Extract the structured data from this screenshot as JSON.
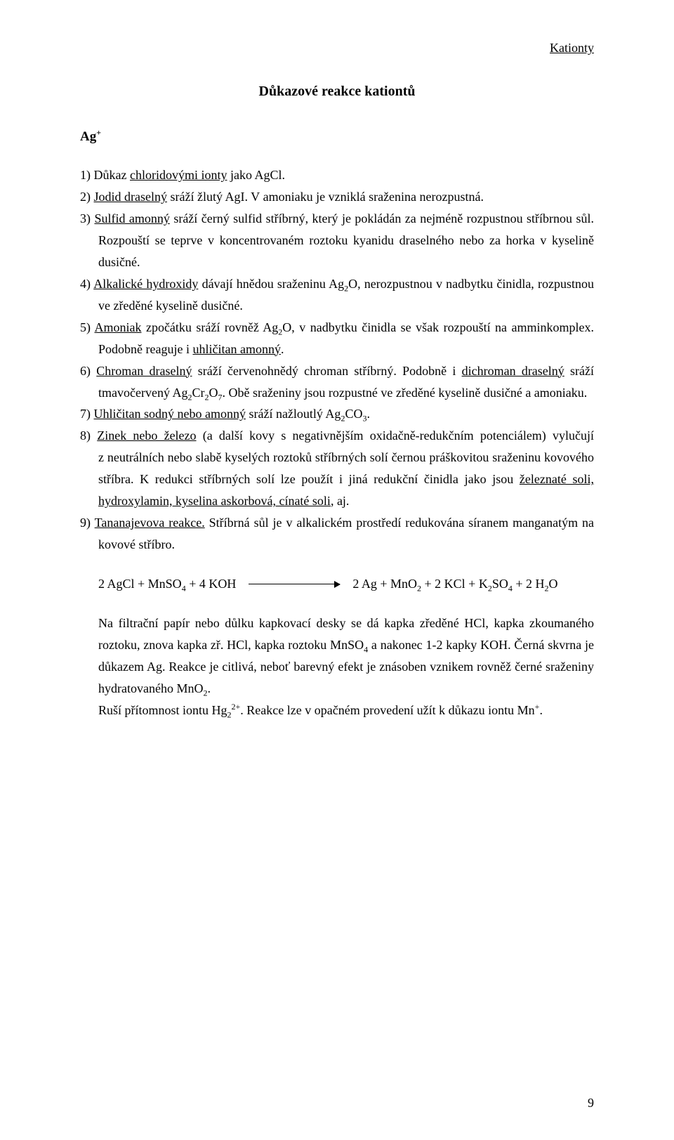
{
  "header": "Kationty",
  "title": "Důkazové reakce kationtů",
  "ion": "Ag",
  "ion_charge": "+",
  "items": {
    "i1_pre": "1) Důkaz ",
    "i1_u": "chloridovými ionty",
    "i1_post": " jako AgCl.",
    "i2_pre": "2) ",
    "i2_u": "Jodid draselný",
    "i2_post": " sráží žlutý AgI. V amoniaku je vzniklá sraženina nerozpustná.",
    "i3_pre": "3) ",
    "i3_u": "Sulfid amonný",
    "i3_post": " sráží černý sulfid stříbrný, který je pokládán za nejméně rozpustnou stříbrnou sůl. Rozpouští se teprve v koncentrovaném roztoku kyanidu draselného nebo za horka v kyselině dusičné.",
    "i4_pre": "4) ",
    "i4_u": "Alkalické hydroxidy",
    "i4_mid": " dávají hnědou sraženinu Ag",
    "i4_sub": "2",
    "i4_post": "O, nerozpustnou v nadbytku činidla, rozpustnou ve zředěné kyselině dusičné.",
    "i5_pre": "5) ",
    "i5_u": "Amoniak",
    "i5_mid": " zpočátku sráží rovněž Ag",
    "i5_sub": "2",
    "i5_mid2": "O, v nadbytku činidla se však rozpouští na amminkomplex. Podobně reaguje i ",
    "i5_u2": "uhličitan amonný",
    "i5_post": ".",
    "i6_pre": "6) ",
    "i6_u": "Chroman draselný",
    "i6_mid": " sráží červenohnědý chroman stříbrný. Podobně i ",
    "i6_u2": "dichroman draselný",
    "i6_mid2": " sráží tmavočervený Ag",
    "i6_s1": "2",
    "i6_mid3": "Cr",
    "i6_s2": "2",
    "i6_mid4": "O",
    "i6_s3": "7",
    "i6_post": ". Obě sraženiny jsou rozpustné ve zředěné kyselině dusičné a amoniaku.",
    "i7_pre": "7) ",
    "i7_u": "Uhličitan sodný nebo amonný",
    "i7_mid": " sráží nažloutlý Ag",
    "i7_s1": "2",
    "i7_mid2": "CO",
    "i7_s2": "3",
    "i7_post": ".",
    "i8_pre": "8) ",
    "i8_u": "Zinek nebo železo",
    "i8_mid": " (a další kovy s negativnějším oxidačně-redukčním potenciálem) vylučují z neutrálních nebo slabě kyselých roztoků stříbrných solí černou práškovitou sraženinu kovového stříbra. K redukci stříbrných solí lze použít i jiná redukční činidla jako jsou ",
    "i8_u2": "železnaté soli, hydroxylamin, kyselina askorbová, cínaté soli",
    "i8_post": ", aj.",
    "i9_pre": "9) ",
    "i9_u": "Tananajevova reakce.",
    "i9_post": " Stříbrná sůl je v alkalickém prostředí redukována síranem manganatým na kovové stříbro."
  },
  "equation": {
    "lhs_1": "2 AgCl + MnSO",
    "lhs_s1": "4",
    "lhs_2": " + 4 KOH",
    "rhs_1": "2 Ag + MnO",
    "rhs_s1": "2",
    "rhs_2": " + 2 KCl + K",
    "rhs_s2": "2",
    "rhs_3": "SO",
    "rhs_s3": "4",
    "rhs_4": " + 2 H",
    "rhs_s4": "2",
    "rhs_5": "O"
  },
  "para1_a": "Na filtrační papír nebo důlku kapkovací desky se dá kapka zředěné HCl, kapka zkoumaného roztoku, znova kapka zř. HCl, kapka roztoku MnSO",
  "para1_s1": "4",
  "para1_b": " a nakonec 1-2 kapky KOH. Černá skvrna je důkazem Ag. Reakce je citlivá, neboť barevný efekt je znásoben vznikem rovněž černé sraženiny hydratovaného MnO",
  "para1_s2": "2",
  "para1_c": ".",
  "para2_a": "Ruší přítomnost iontu Hg",
  "para2_s1": "2",
  "para2_sup": "2+",
  "para2_b": ". Reakce lze v opačném provedení užít k důkazu iontu Mn",
  "para2_sup2": "+",
  "para2_c": ".",
  "page_number": "9"
}
